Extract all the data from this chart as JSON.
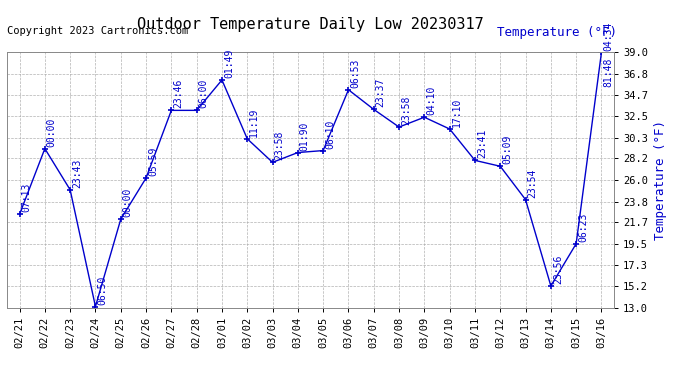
{
  "title": "Outdoor Temperature Daily Low 20230317",
  "copyright": "Copyright 2023 Cartronics.com",
  "ylabel": "Temperature (°F)",
  "dates": [
    "02/21",
    "02/22",
    "02/23",
    "02/24",
    "02/25",
    "02/26",
    "02/27",
    "02/28",
    "03/01",
    "03/02",
    "03/03",
    "03/04",
    "03/05",
    "03/06",
    "03/07",
    "03/08",
    "03/09",
    "03/10",
    "03/11",
    "03/12",
    "03/13",
    "03/14",
    "03/15",
    "03/16"
  ],
  "temperatures": [
    22.5,
    29.2,
    25.0,
    13.1,
    22.0,
    26.2,
    33.1,
    33.1,
    36.2,
    30.2,
    27.8,
    28.8,
    29.0,
    35.2,
    33.2,
    31.4,
    32.4,
    31.2,
    28.0,
    27.4,
    24.0,
    15.2,
    19.5,
    39.0
  ],
  "time_labels": [
    "07:13",
    "00:00",
    "23:43",
    "06:50",
    "00:00",
    "05:59",
    "23:46",
    "06:00",
    "01:49",
    "11:19",
    "23:58",
    "01:90",
    "06:10",
    "06:53",
    "23:37",
    "23:58",
    "04:10",
    "17:10",
    "23:41",
    "05:09",
    "23:54",
    "23:56",
    "06:23",
    "04:34"
  ],
  "extra_label": "81:48",
  "ylim_min": 13.0,
  "ylim_max": 39.0,
  "yticks": [
    13.0,
    15.2,
    17.3,
    19.5,
    21.7,
    23.8,
    26.0,
    28.2,
    30.3,
    32.5,
    34.7,
    36.8,
    39.0
  ],
  "line_color": "#0000cc",
  "marker": "+",
  "bg_color": "#ffffff",
  "grid_color": "#aaaaaa",
  "title_fontsize": 11,
  "tick_fontsize": 7.5,
  "annotation_fontsize": 7,
  "copyright_fontsize": 7.5,
  "ylabel_fontsize": 9
}
